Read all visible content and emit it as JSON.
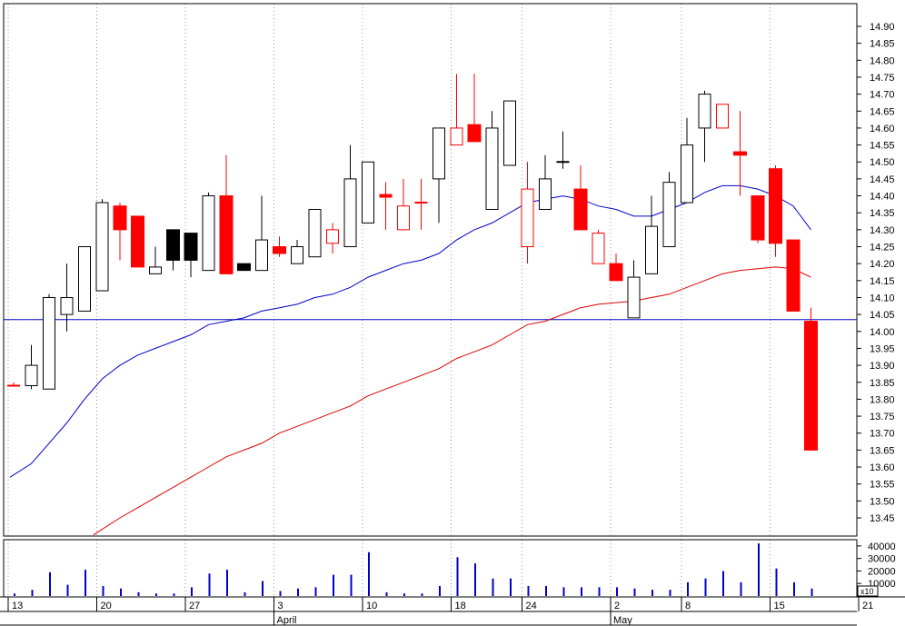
{
  "colors": {
    "up": "#000000",
    "down": "#ff0000",
    "ma_short": "#0000cc",
    "ma_long": "#dd0000",
    "hline": "#0000cc",
    "volume": "#0000cc",
    "grid": "#999999"
  },
  "chart_data": {
    "type": "candlestick",
    "price_axis": {
      "ticks": [
        "14.90",
        "14.85",
        "14.80",
        "14.75",
        "14.70",
        "14.65",
        "14.60",
        "14.55",
        "14.50",
        "14.45",
        "14.40",
        "14.35",
        "14.30",
        "14.25",
        "14.20",
        "14.15",
        "14.10",
        "14.05",
        "14.00",
        "13.95",
        "13.90",
        "13.85",
        "13.80",
        "13.75",
        "13.70",
        "13.65",
        "13.60",
        "13.55",
        "13.50",
        "13.45"
      ],
      "range": [
        13.4,
        14.93
      ],
      "position": "right"
    },
    "volume_axis": {
      "ticks": [
        "40000",
        "30000",
        "20000",
        "10000"
      ],
      "multiplier": "x10",
      "range": [
        0,
        45000
      ]
    },
    "x_axis": {
      "labels": [
        {
          "text": "13",
          "day": 0
        },
        {
          "text": "20",
          "day": 5
        },
        {
          "text": "27",
          "day": 10
        },
        {
          "text": "3",
          "day": 15
        },
        {
          "text": "10",
          "day": 20
        },
        {
          "text": "18",
          "day": 25
        },
        {
          "text": "24",
          "day": 29
        },
        {
          "text": "2",
          "day": 34
        },
        {
          "text": "8",
          "day": 38
        },
        {
          "text": "15",
          "day": 43
        },
        {
          "text": "21",
          "day": 48
        }
      ],
      "months": [
        {
          "text": "April",
          "day": 15
        },
        {
          "text": "May",
          "day": 34
        }
      ]
    },
    "hline_value": 14.035,
    "candles": [
      {
        "day": 0,
        "o": 13.84,
        "h": 13.85,
        "l": 13.84,
        "c": 13.84,
        "vol": 2000,
        "color": "red",
        "style": "dash"
      },
      {
        "day": 1,
        "o": 13.84,
        "h": 13.96,
        "l": 13.83,
        "c": 13.9,
        "vol": 5000,
        "color": "black",
        "style": "hollow"
      },
      {
        "day": 2,
        "o": 13.83,
        "h": 14.11,
        "l": 13.83,
        "c": 14.1,
        "vol": 19000,
        "color": "black",
        "style": "hollow"
      },
      {
        "day": 3,
        "o": 14.05,
        "h": 14.2,
        "l": 14.0,
        "c": 14.1,
        "vol": 9000,
        "color": "black",
        "style": "hollow"
      },
      {
        "day": 4,
        "o": 14.06,
        "h": 14.25,
        "l": 14.06,
        "c": 14.25,
        "vol": 21000,
        "color": "black",
        "style": "hollow"
      },
      {
        "day": 5,
        "o": 14.12,
        "h": 14.39,
        "l": 14.12,
        "c": 14.38,
        "vol": 8000,
        "color": "black",
        "style": "hollow"
      },
      {
        "day": 6,
        "o": 14.37,
        "h": 14.38,
        "l": 14.21,
        "c": 14.3,
        "vol": 6000,
        "color": "red",
        "style": "filled"
      },
      {
        "day": 7,
        "o": 14.34,
        "h": 14.34,
        "l": 14.19,
        "c": 14.19,
        "vol": 3000,
        "color": "red",
        "style": "filled"
      },
      {
        "day": 8,
        "o": 14.17,
        "h": 14.25,
        "l": 14.17,
        "c": 14.19,
        "vol": 2000,
        "color": "black",
        "style": "hollow"
      },
      {
        "day": 9,
        "o": 14.3,
        "h": 14.3,
        "l": 14.18,
        "c": 14.21,
        "vol": 2000,
        "color": "black",
        "style": "filled"
      },
      {
        "day": 10,
        "o": 14.29,
        "h": 14.29,
        "l": 14.16,
        "c": 14.21,
        "vol": 7000,
        "color": "black",
        "style": "filled"
      },
      {
        "day": 11,
        "o": 14.18,
        "h": 14.41,
        "l": 14.18,
        "c": 14.4,
        "vol": 18000,
        "color": "black",
        "style": "hollow"
      },
      {
        "day": 12,
        "o": 14.4,
        "h": 14.52,
        "l": 14.17,
        "c": 14.17,
        "vol": 21000,
        "color": "red",
        "style": "filled"
      },
      {
        "day": 13,
        "o": 14.2,
        "h": 14.2,
        "l": 14.18,
        "c": 14.18,
        "vol": 3000,
        "color": "black",
        "style": "filled"
      },
      {
        "day": 14,
        "o": 14.18,
        "h": 14.4,
        "l": 14.18,
        "c": 14.27,
        "vol": 12000,
        "color": "black",
        "style": "hollow"
      },
      {
        "day": 15,
        "o": 14.25,
        "h": 14.28,
        "l": 14.22,
        "c": 14.23,
        "vol": 4000,
        "color": "red",
        "style": "filled"
      },
      {
        "day": 16,
        "o": 14.2,
        "h": 14.27,
        "l": 14.2,
        "c": 14.25,
        "vol": 6000,
        "color": "black",
        "style": "hollow"
      },
      {
        "day": 17,
        "o": 14.22,
        "h": 14.36,
        "l": 14.22,
        "c": 14.36,
        "vol": 7000,
        "color": "black",
        "style": "hollow"
      },
      {
        "day": 18,
        "o": 14.3,
        "h": 14.32,
        "l": 14.23,
        "c": 14.26,
        "vol": 17000,
        "color": "red",
        "style": "hollow"
      },
      {
        "day": 19,
        "o": 14.25,
        "h": 14.55,
        "l": 14.25,
        "c": 14.45,
        "vol": 17000,
        "color": "black",
        "style": "hollow"
      },
      {
        "day": 20,
        "o": 14.32,
        "h": 14.5,
        "l": 14.32,
        "c": 14.5,
        "vol": 35000,
        "color": "black",
        "style": "hollow"
      },
      {
        "day": 21,
        "o": 14.4,
        "h": 14.44,
        "l": 14.3,
        "c": 14.4,
        "vol": 3000,
        "color": "red",
        "style": "filled"
      },
      {
        "day": 22,
        "o": 14.37,
        "h": 14.45,
        "l": 14.3,
        "c": 14.3,
        "vol": 2000,
        "color": "red",
        "style": "hollow"
      },
      {
        "day": 23,
        "o": 14.38,
        "h": 14.45,
        "l": 14.3,
        "c": 14.38,
        "vol": 2000,
        "color": "red",
        "style": "dash"
      },
      {
        "day": 24,
        "o": 14.45,
        "h": 14.6,
        "l": 14.32,
        "c": 14.6,
        "vol": 8000,
        "color": "black",
        "style": "hollow"
      },
      {
        "day": 25,
        "o": 14.6,
        "h": 14.76,
        "l": 14.55,
        "c": 14.55,
        "vol": 31000,
        "color": "red",
        "style": "hollow"
      },
      {
        "day": 26,
        "o": 14.61,
        "h": 14.76,
        "l": 14.56,
        "c": 14.56,
        "vol": 26000,
        "color": "red",
        "style": "filled"
      },
      {
        "day": 27,
        "o": 14.36,
        "h": 14.65,
        "l": 14.36,
        "c": 14.6,
        "vol": 14000,
        "color": "black",
        "style": "hollow"
      },
      {
        "day": 28,
        "o": 14.49,
        "h": 14.68,
        "l": 14.49,
        "c": 14.68,
        "vol": 14000,
        "color": "black",
        "style": "hollow"
      },
      {
        "day": 29,
        "o": 14.42,
        "h": 14.5,
        "l": 14.2,
        "c": 14.25,
        "vol": 8000,
        "color": "red",
        "style": "hollow"
      },
      {
        "day": 30,
        "o": 14.36,
        "h": 14.52,
        "l": 14.36,
        "c": 14.45,
        "vol": 8000,
        "color": "black",
        "style": "hollow"
      },
      {
        "day": 31,
        "o": 14.5,
        "h": 14.59,
        "l": 14.48,
        "c": 14.5,
        "vol": 7000,
        "color": "black",
        "style": "dash"
      },
      {
        "day": 32,
        "o": 14.42,
        "h": 14.49,
        "l": 14.3,
        "c": 14.3,
        "vol": 7000,
        "color": "red",
        "style": "filled"
      },
      {
        "day": 33,
        "o": 14.29,
        "h": 14.3,
        "l": 14.2,
        "c": 14.2,
        "vol": 7000,
        "color": "red",
        "style": "hollow"
      },
      {
        "day": 34,
        "o": 14.2,
        "h": 14.23,
        "l": 14.15,
        "c": 14.15,
        "vol": 7000,
        "color": "red",
        "style": "filled"
      },
      {
        "day": 35,
        "o": 14.04,
        "h": 14.21,
        "l": 14.04,
        "c": 14.16,
        "vol": 6000,
        "color": "black",
        "style": "hollow"
      },
      {
        "day": 36,
        "o": 14.17,
        "h": 14.4,
        "l": 14.17,
        "c": 14.31,
        "vol": 5000,
        "color": "black",
        "style": "hollow"
      },
      {
        "day": 37,
        "o": 14.25,
        "h": 14.47,
        "l": 14.25,
        "c": 14.44,
        "vol": 5000,
        "color": "black",
        "style": "hollow"
      },
      {
        "day": 38,
        "o": 14.38,
        "h": 14.63,
        "l": 14.38,
        "c": 14.55,
        "vol": 11000,
        "color": "black",
        "style": "hollow"
      },
      {
        "day": 39,
        "o": 14.6,
        "h": 14.71,
        "l": 14.5,
        "c": 14.7,
        "vol": 14000,
        "color": "black",
        "style": "hollow"
      },
      {
        "day": 40,
        "o": 14.67,
        "h": 14.67,
        "l": 14.6,
        "c": 14.6,
        "vol": 20000,
        "color": "red",
        "style": "hollow"
      },
      {
        "day": 41,
        "o": 14.53,
        "h": 14.65,
        "l": 14.4,
        "c": 14.52,
        "vol": 11000,
        "color": "red",
        "style": "filled"
      },
      {
        "day": 42,
        "o": 14.4,
        "h": 14.4,
        "l": 14.26,
        "c": 14.27,
        "vol": 42000,
        "color": "red",
        "style": "filled"
      },
      {
        "day": 43,
        "o": 14.48,
        "h": 14.49,
        "l": 14.22,
        "c": 14.26,
        "vol": 22000,
        "color": "red",
        "style": "filled"
      },
      {
        "day": 44,
        "o": 14.27,
        "h": 14.27,
        "l": 14.06,
        "c": 14.06,
        "vol": 11000,
        "color": "red",
        "style": "filled"
      },
      {
        "day": 45,
        "o": 14.03,
        "h": 14.07,
        "l": 13.65,
        "c": 13.65,
        "vol": 6000,
        "color": "red",
        "style": "filled"
      }
    ],
    "ma_short": [
      {
        "day": -0.2,
        "v": 13.57
      },
      {
        "day": 1,
        "v": 13.61
      },
      {
        "day": 2,
        "v": 13.67
      },
      {
        "day": 3,
        "v": 13.73
      },
      {
        "day": 4,
        "v": 13.8
      },
      {
        "day": 5,
        "v": 13.86
      },
      {
        "day": 6,
        "v": 13.9
      },
      {
        "day": 7,
        "v": 13.93
      },
      {
        "day": 8,
        "v": 13.95
      },
      {
        "day": 9,
        "v": 13.97
      },
      {
        "day": 10,
        "v": 13.99
      },
      {
        "day": 11,
        "v": 14.02
      },
      {
        "day": 12,
        "v": 14.03
      },
      {
        "day": 13,
        "v": 14.04
      },
      {
        "day": 14,
        "v": 14.06
      },
      {
        "day": 15,
        "v": 14.07
      },
      {
        "day": 16,
        "v": 14.08
      },
      {
        "day": 17,
        "v": 14.1
      },
      {
        "day": 18,
        "v": 14.11
      },
      {
        "day": 19,
        "v": 14.13
      },
      {
        "day": 20,
        "v": 14.16
      },
      {
        "day": 21,
        "v": 14.18
      },
      {
        "day": 22,
        "v": 14.2
      },
      {
        "day": 23,
        "v": 14.21
      },
      {
        "day": 24,
        "v": 14.23
      },
      {
        "day": 25,
        "v": 14.27
      },
      {
        "day": 26,
        "v": 14.3
      },
      {
        "day": 27,
        "v": 14.32
      },
      {
        "day": 28,
        "v": 14.35
      },
      {
        "day": 29,
        "v": 14.38
      },
      {
        "day": 30,
        "v": 14.39
      },
      {
        "day": 31,
        "v": 14.4
      },
      {
        "day": 32,
        "v": 14.39
      },
      {
        "day": 33,
        "v": 14.37
      },
      {
        "day": 34,
        "v": 14.36
      },
      {
        "day": 35,
        "v": 14.34
      },
      {
        "day": 36,
        "v": 14.34
      },
      {
        "day": 37,
        "v": 14.36
      },
      {
        "day": 38,
        "v": 14.38
      },
      {
        "day": 39,
        "v": 14.41
      },
      {
        "day": 40,
        "v": 14.43
      },
      {
        "day": 41,
        "v": 14.43
      },
      {
        "day": 42,
        "v": 14.42
      },
      {
        "day": 43,
        "v": 14.4
      },
      {
        "day": 44,
        "v": 14.37
      },
      {
        "day": 45,
        "v": 14.3
      }
    ],
    "ma_long": [
      {
        "day": 4.5,
        "v": 13.4
      },
      {
        "day": 6,
        "v": 13.45
      },
      {
        "day": 7,
        "v": 13.48
      },
      {
        "day": 8,
        "v": 13.51
      },
      {
        "day": 9,
        "v": 13.54
      },
      {
        "day": 10,
        "v": 13.57
      },
      {
        "day": 11,
        "v": 13.6
      },
      {
        "day": 12,
        "v": 13.63
      },
      {
        "day": 13,
        "v": 13.65
      },
      {
        "day": 14,
        "v": 13.67
      },
      {
        "day": 15,
        "v": 13.7
      },
      {
        "day": 16,
        "v": 13.72
      },
      {
        "day": 17,
        "v": 13.74
      },
      {
        "day": 18,
        "v": 13.76
      },
      {
        "day": 19,
        "v": 13.78
      },
      {
        "day": 20,
        "v": 13.81
      },
      {
        "day": 21,
        "v": 13.83
      },
      {
        "day": 22,
        "v": 13.85
      },
      {
        "day": 23,
        "v": 13.87
      },
      {
        "day": 24,
        "v": 13.89
      },
      {
        "day": 25,
        "v": 13.92
      },
      {
        "day": 26,
        "v": 13.94
      },
      {
        "day": 27,
        "v": 13.96
      },
      {
        "day": 28,
        "v": 13.99
      },
      {
        "day": 29,
        "v": 14.02
      },
      {
        "day": 30,
        "v": 14.03
      },
      {
        "day": 31,
        "v": 14.05
      },
      {
        "day": 32,
        "v": 14.07
      },
      {
        "day": 33,
        "v": 14.08
      },
      {
        "day": 34,
        "v": 14.085
      },
      {
        "day": 35,
        "v": 14.09
      },
      {
        "day": 36,
        "v": 14.1
      },
      {
        "day": 37,
        "v": 14.11
      },
      {
        "day": 38,
        "v": 14.13
      },
      {
        "day": 39,
        "v": 14.15
      },
      {
        "day": 40,
        "v": 14.17
      },
      {
        "day": 41,
        "v": 14.18
      },
      {
        "day": 42,
        "v": 14.185
      },
      {
        "day": 43,
        "v": 14.19
      },
      {
        "day": 44,
        "v": 14.185
      },
      {
        "day": 45,
        "v": 14.16
      }
    ]
  }
}
